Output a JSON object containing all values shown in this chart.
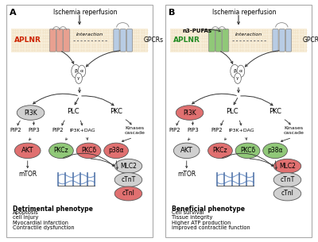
{
  "fig_width": 4.0,
  "fig_height": 3.05,
  "dpi": 100,
  "bg_color": "#ffffff",
  "panel_A": {
    "label": "A",
    "title": "Ischemia reperfusion",
    "aplnr_label": "APLNR",
    "aplnr_color": "#cc2200",
    "aplnr_receptor_color": "#e8a090",
    "gpcrs_label": "GPCRs",
    "gpcrs_receptor_color": "#b8cce4",
    "interaction_label": "Interaction",
    "pi3k_color": "#d0d0d0",
    "pi3k_label": "PI3K",
    "plc_label": "PLC",
    "pkc_label": "PKC",
    "pip2a_label": "PIP2",
    "pip3_label": "PIP3",
    "pip2b_label": "PIP2",
    "ip3k_label": "IP3K+DAG",
    "kinases_label": "Kinases\ncascade",
    "akt_color": "#e07070",
    "akt_label": "AKT",
    "pkcz_color": "#90c878",
    "pkcz_label": "PKCz",
    "pkcd_color": "#e07070",
    "pkcd_label": "PKCδ",
    "p38a_color": "#e07070",
    "p38a_label": "p38α",
    "mtor_label": "mTOR",
    "mtor_color": "#d0d0d0",
    "mlc2_color": "#d0d0d0",
    "mlc2_label": "MLC2",
    "ctnt_color": "#d0d0d0",
    "ctnt_label": "cTnT",
    "ctni_color": "#e07070",
    "ctni_label": "cTnI",
    "phenotype_title": "Detrimental phenotype",
    "phenotype_items": [
      "Apoptosis",
      "cell injury",
      "Myocardial infarction",
      "Contractile dysfunction"
    ]
  },
  "panel_B": {
    "label": "B",
    "title": "Ischemia reperfusion",
    "n3_label": "n3-PUFAs",
    "aplnr_label": "APLNR",
    "aplnr_color": "#228b22",
    "aplnr_receptor_color": "#90c878",
    "gpcrs_label": "GPCRs",
    "gpcrs_receptor_color": "#b8cce4",
    "interaction_label": "Interaction",
    "pi3k_color": "#e07070",
    "pi3k_label": "PI3K",
    "plc_label": "PLC",
    "pkc_label": "PKC",
    "pip2a_label": "PIP2",
    "pip3_label": "PIP3",
    "pip2b_label": "PIP2",
    "ip3k_label": "IP3K+DAG",
    "kinases_label": "Kinases\ncascade",
    "akt_color": "#d0d0d0",
    "akt_label": "AKT",
    "pkcz_color": "#e07070",
    "pkcz_label": "PKCz",
    "pkcd_color": "#90c878",
    "pkcd_label": "PKCδ",
    "p38a_color": "#90c878",
    "p38a_label": "p38α",
    "mtor_label": "mTOR",
    "mtor_color": "#e07070",
    "mlc2_color": "#e07070",
    "mlc2_label": "MLC2",
    "ctnt_color": "#d0d0d0",
    "ctnt_label": "cTnT",
    "ctni_color": "#d0d0d0",
    "ctni_label": "cTnI",
    "phenotype_title": "Beneficial phenotype",
    "phenotype_items": [
      "Cell survival",
      "Tissue integrity",
      "Higher ATP production",
      "Improved contractile function"
    ]
  }
}
